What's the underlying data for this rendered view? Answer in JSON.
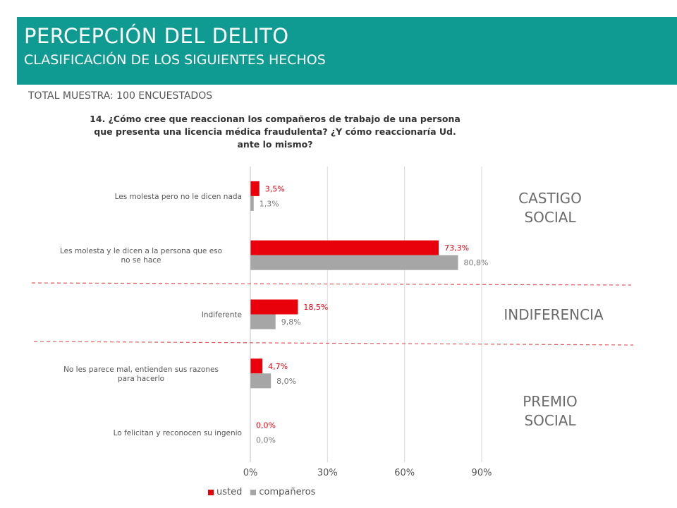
{
  "header": {
    "title": "PERCEPCIÓN DEL DELITO",
    "subtitle": "CLASIFICACIÓN DE LOS SIGUIENTES HECHOS",
    "total_sample": "TOTAL MUESTRA: 100 ENCUESTADOS"
  },
  "groups": {
    "castigo": "CASTIGO\nSOCIAL",
    "indiferencia": "INDIFERENCIA",
    "premio": "PREMIO\nSOCIAL"
  },
  "colors": {
    "header_bg": "#0f9b92",
    "usted": "#e8000b",
    "companeros": "#a6a6a6",
    "divider": "#e05a5a"
  },
  "chart_data": {
    "type": "bar",
    "orientation": "horizontal",
    "title": "14. ¿Cómo cree que reaccionan los compañeros de trabajo de una persona que presenta una licencia médica fraudulenta? ¿Y cómo reaccionaría Ud. ante lo mismo?",
    "categories": [
      "Les molesta pero no le dicen nada",
      "Les molesta y le dicen a la persona que eso no se hace",
      "Indiferente",
      "No les parece mal, entienden sus razones para hacerlo",
      "Lo felicitan y reconocen su ingenio"
    ],
    "series": [
      {
        "name": "usted",
        "values": [
          3.5,
          73.3,
          18.5,
          4.7,
          0.0
        ],
        "labels": [
          "3,5%",
          "73,3%",
          "18,5%",
          "4,7%",
          "0,0%"
        ]
      },
      {
        "name": "compañeros",
        "values": [
          1.3,
          80.8,
          9.8,
          8.0,
          0.0
        ],
        "labels": [
          "1,3%",
          "80,8%",
          "9,8%",
          "8,0%",
          "0,0%"
        ]
      }
    ],
    "xlim": [
      0,
      90
    ],
    "xticks": [
      "0%",
      "30%",
      "60%",
      "90%"
    ],
    "grid": true,
    "legend": "bottom"
  }
}
